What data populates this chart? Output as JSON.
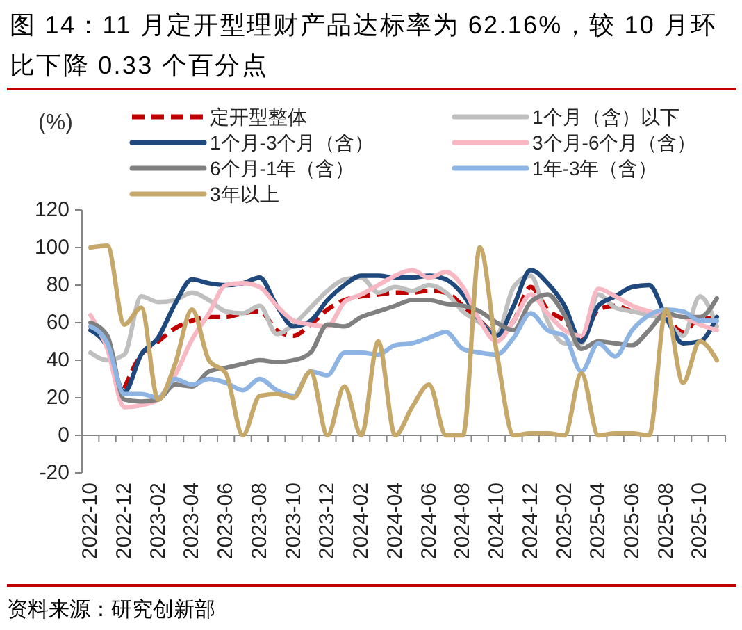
{
  "chart_data": {
    "type": "line",
    "title": "图 14：11 月定开型理财产品达标率为 62.16%，较 10 月环比下降 0.33 个百分点",
    "ylabel": "(%)",
    "categories": [
      "2022-10",
      null,
      "2022-12",
      null,
      "2023-02",
      null,
      "2023-04",
      null,
      "2023-06",
      null,
      "2023-08",
      null,
      "2023-10",
      null,
      "2023-12",
      null,
      "2024-02",
      null,
      "2024-04",
      null,
      "2024-06",
      null,
      "2024-08",
      null,
      "2024-10",
      null,
      "2024-12",
      null,
      "2025-02",
      null,
      "2025-04",
      null,
      "2025-06",
      null,
      "2025-08",
      null,
      "2025-10",
      null
    ],
    "ylim": [
      -20,
      120
    ],
    "yticks": [
      -20,
      0,
      20,
      40,
      60,
      80,
      100,
      120
    ],
    "legend": "top",
    "line_style": "solid",
    "series": [
      {
        "name": "定开型整体",
        "color": "#c00000",
        "line_style": "dashed",
        "values": [
          null,
          null,
          25,
          43,
          50,
          57,
          61,
          63,
          63,
          65,
          66,
          56,
          53,
          59,
          67,
          72,
          74,
          75,
          76,
          76,
          77,
          76,
          69,
          61,
          54,
          61,
          79,
          67,
          61,
          52,
          67,
          69,
          66,
          65,
          62,
          55,
          62.5,
          62.16
        ]
      },
      {
        "name": "1个月（含）以下",
        "color": "#bfbfbf",
        "values": [
          44,
          40,
          43,
          74,
          71,
          72,
          76,
          72,
          66,
          65,
          69,
          54,
          59,
          68,
          77,
          83,
          84,
          76,
          79,
          77,
          80,
          76,
          66,
          60,
          54,
          79,
          85,
          61,
          49,
          49,
          75,
          68,
          66,
          64,
          61,
          53,
          74,
          58
        ]
      },
      {
        "name": "1个月-3个月（含）",
        "color": "#1f497d",
        "values": [
          56,
          47,
          23,
          43,
          52,
          70,
          83,
          81,
          80,
          81,
          84,
          69,
          58,
          61,
          72,
          80,
          85,
          85,
          84,
          84,
          85,
          83,
          75,
          61,
          53,
          69,
          88,
          81,
          69,
          50,
          69,
          74,
          79,
          80,
          63,
          49,
          50,
          63
        ]
      },
      {
        "name": "3个月-6个月（含）",
        "color": "#f7b8c4",
        "values": [
          64,
          46,
          15,
          16,
          19,
          32,
          51,
          65,
          80,
          81,
          79,
          69,
          61,
          59,
          58,
          71,
          75,
          80,
          85,
          88,
          84,
          87,
          79,
          61,
          50,
          61,
          75,
          65,
          56,
          53,
          78,
          74,
          69,
          66,
          64,
          63,
          59,
          56
        ]
      },
      {
        "name": "6个月-1年（含）",
        "color": "#808080",
        "values": [
          60,
          53,
          19,
          18,
          19,
          27,
          26,
          34,
          36,
          38,
          40,
          39,
          40,
          44,
          59,
          58,
          63,
          66,
          69,
          72,
          72,
          70,
          69,
          66,
          60,
          56,
          71,
          75,
          64,
          46,
          50,
          49,
          48,
          56,
          65,
          63,
          63,
          73
        ]
      },
      {
        "name": "1年-3年（含）",
        "color": "#8eb4e3",
        "values": [
          58,
          49,
          22,
          22,
          20,
          30,
          27,
          30,
          28,
          24,
          30,
          24,
          21,
          34,
          32,
          44,
          44,
          43,
          48,
          49,
          52,
          55,
          46,
          44,
          43,
          52,
          65,
          56,
          53,
          34,
          49,
          42,
          56,
          64,
          67,
          66,
          61,
          61
        ]
      },
      {
        "name": "3年以上",
        "color": "#c6a86b",
        "values": [
          100,
          101,
          59,
          68,
          19,
          38,
          67,
          40,
          33,
          0,
          21,
          22,
          20,
          34,
          0,
          26,
          0,
          50,
          0,
          15,
          27,
          0,
          0,
          100,
          44,
          0,
          1,
          1,
          0,
          33,
          0,
          1,
          1,
          0,
          67,
          28,
          50,
          40
        ]
      }
    ],
    "annotations": [
      "资料来源：研究创新部"
    ]
  }
}
